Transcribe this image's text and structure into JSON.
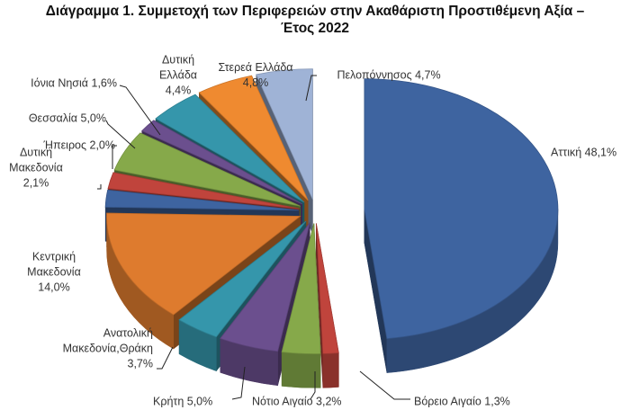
{
  "chart_data": {
    "type": "pie",
    "title_lines": [
      "Διάγραμμα 1. Συμμετοχή των Περιφερειών στην Ακαθάριστη Προστιθέμενη Αξία –",
      "Έτος 2022"
    ],
    "slices": [
      {
        "label_lines": [
          "Αττική 48,1%"
        ],
        "value": 48.1,
        "color": "#3e64a0"
      },
      {
        "label_lines": [
          "Βόρειο Αιγαίο 1,3%"
        ],
        "value": 1.3,
        "color": "#c0443c"
      },
      {
        "label_lines": [
          "Νότιο Αιγαίο 3,2%"
        ],
        "value": 3.2,
        "color": "#86a94a"
      },
      {
        "label_lines": [
          "Κρήτη 5,0%"
        ],
        "value": 5.0,
        "color": "#6b4f8e"
      },
      {
        "label_lines": [
          "Ανατολική",
          "Μακεδονία,Θράκη",
          "3,7%"
        ],
        "value": 3.7,
        "color": "#3596ab"
      },
      {
        "label_lines": [
          "Κεντρική",
          "Μακεδονία",
          "14,0%"
        ],
        "value": 14.0,
        "color": "#de7b2e"
      },
      {
        "label_lines": [
          "Δυτική",
          "Μακεδονία",
          "2,1%"
        ],
        "value": 2.1,
        "color": "#3e64a0"
      },
      {
        "label_lines": [
          "Ήπειρος 2,0%"
        ],
        "value": 2.0,
        "color": "#c0443c"
      },
      {
        "label_lines": [
          "Θεσσαλία 5,0%"
        ],
        "value": 5.0,
        "color": "#86a94a"
      },
      {
        "label_lines": [
          "Ιόνια Νησιά 1,6%"
        ],
        "value": 1.6,
        "color": "#6b4f8e"
      },
      {
        "label_lines": [
          "Δυτική",
          "Ελλάδα",
          "4,4%"
        ],
        "value": 4.4,
        "color": "#3596ab"
      },
      {
        "label_lines": [
          "Στερεά Ελλάδα",
          "4,8%"
        ],
        "value": 4.8,
        "color": "#ef8a30"
      },
      {
        "label_lines": [
          "Πελοπόννησος 4,7%"
        ],
        "value": 4.7,
        "color": "#9fb3d6"
      }
    ],
    "legend": "none",
    "style": "exploded 3D pie"
  }
}
